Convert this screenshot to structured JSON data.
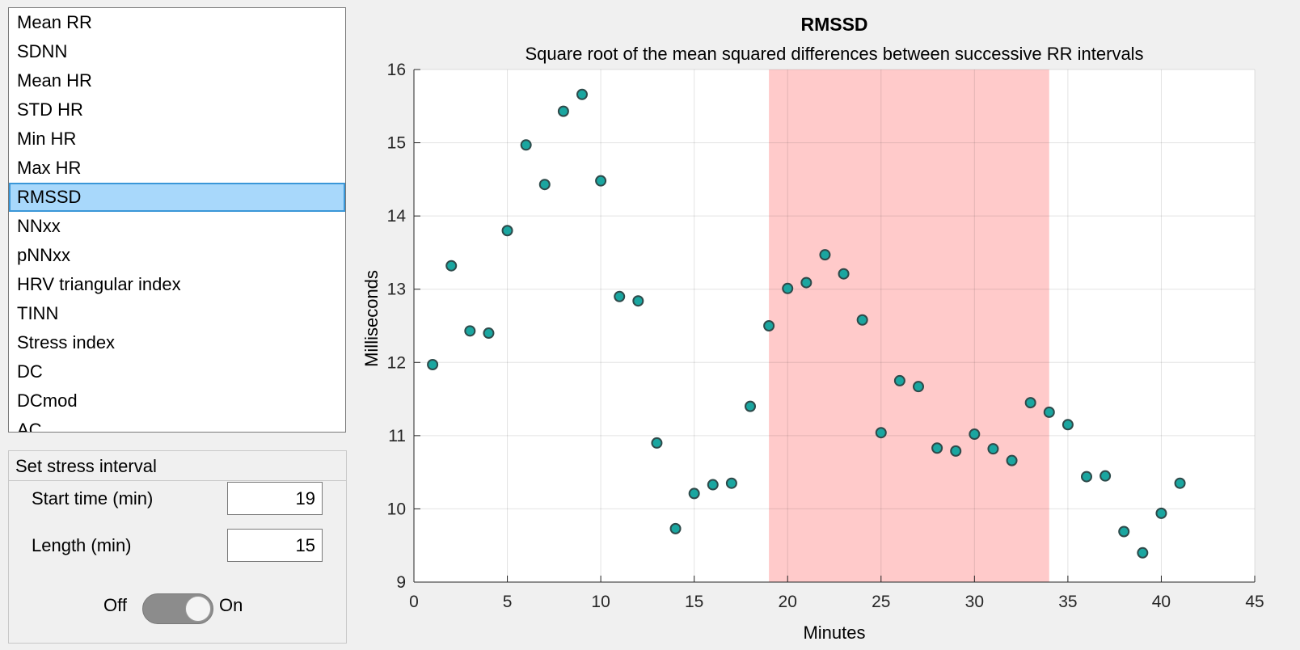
{
  "metric_list": {
    "items": [
      "Mean RR",
      "SDNN",
      "Mean HR",
      "STD HR",
      "Min HR",
      "Max HR",
      "RMSSD",
      "NNxx",
      "pNNxx",
      "HRV triangular index",
      "TINN",
      "Stress index",
      "DC",
      "DCmod",
      "AC"
    ],
    "selected_index": 6
  },
  "stress_panel": {
    "title": "Set stress interval",
    "start_label": "Start time (min)",
    "start_value": "19",
    "length_label": "Length (min)",
    "length_value": "15",
    "toggle_off_label": "Off",
    "toggle_on_label": "On",
    "toggle_state": "on"
  },
  "colors": {
    "marker_fill": "#1aa6a0",
    "marker_edge": "#2e4a4a",
    "highlight": "#ff8080"
  },
  "chart_data": {
    "type": "scatter",
    "title": "RMSSD",
    "subtitle": "Square root of the mean squared differences between successive RR intervals",
    "xlabel": "Minutes",
    "ylabel": "Milliseconds",
    "xlim": [
      0,
      45
    ],
    "ylim": [
      9,
      16
    ],
    "xticks": [
      0,
      5,
      10,
      15,
      20,
      25,
      30,
      35,
      40,
      45
    ],
    "yticks": [
      9,
      10,
      11,
      12,
      13,
      14,
      15,
      16
    ],
    "grid": true,
    "highlight_interval": [
      19,
      34
    ],
    "x": [
      1,
      2,
      3,
      4,
      5,
      6,
      7,
      8,
      9,
      10,
      11,
      12,
      13,
      14,
      15,
      16,
      17,
      18,
      19,
      20,
      21,
      22,
      23,
      24,
      25,
      26,
      27,
      28,
      29,
      30,
      31,
      32,
      33,
      34,
      35,
      36,
      37,
      38,
      39,
      40,
      41
    ],
    "y": [
      11.97,
      13.32,
      12.43,
      12.4,
      13.8,
      14.97,
      14.43,
      15.43,
      15.66,
      14.48,
      12.9,
      12.84,
      10.9,
      9.73,
      10.21,
      10.33,
      10.35,
      11.4,
      12.5,
      13.01,
      13.09,
      13.47,
      13.21,
      12.58,
      11.04,
      11.75,
      11.67,
      10.83,
      10.79,
      11.02,
      10.82,
      10.66,
      11.45,
      11.32,
      11.15,
      10.44,
      10.45,
      9.69,
      9.4,
      9.94,
      10.35
    ]
  }
}
